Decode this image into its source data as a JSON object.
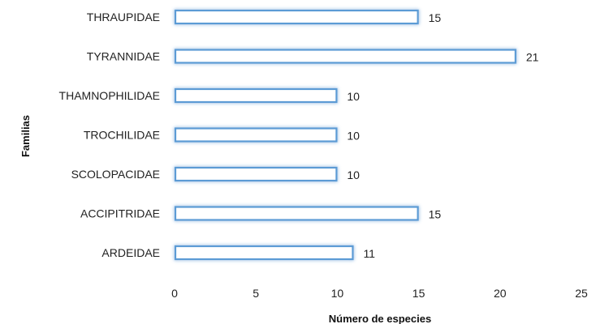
{
  "chart_data": {
    "type": "bar",
    "orientation": "horizontal",
    "categories": [
      "THRAUPIDAE",
      "TYRANNIDAE",
      "THAMNOPHILIDAE",
      "TROCHILIDAE",
      "SCOLOPACIDAE",
      "ACCIPITRIDAE",
      "ARDEIDAE"
    ],
    "values": [
      15,
      21,
      10,
      10,
      10,
      15,
      11
    ],
    "value_labels": [
      "15",
      "21",
      "10",
      "10",
      "10",
      "15",
      "11"
    ],
    "xlabel": "Número de especies",
    "ylabel": "Familias",
    "xlim": [
      0,
      25
    ],
    "x_ticks": [
      0,
      5,
      10,
      15,
      20,
      25
    ],
    "x_tick_labels": [
      "0",
      "5",
      "10",
      "15",
      "20",
      "25"
    ],
    "grid": false,
    "legend": "none",
    "colors": {
      "bar_fill": "#ffffff",
      "bar_stroke": "#5b9bd5",
      "bar_glow": "#9dc3e6",
      "text": "#222222"
    }
  }
}
